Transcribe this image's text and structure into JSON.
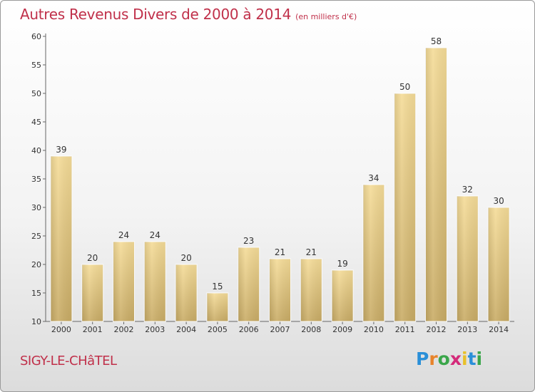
{
  "title": "Autres Revenus Divers de 2000 à 2014",
  "subtitle": "(en milliers d'€)",
  "commune": "SIGY-LE-CHâTEL",
  "logo": {
    "letters": [
      "P",
      "r",
      "o",
      "x",
      "i",
      "t",
      "i"
    ],
    "colors": [
      "#2a8fd8",
      "#e8832a",
      "#3aa64a",
      "#d42a7a",
      "#e8c02a",
      "#2a8fd8",
      "#3aa64a"
    ]
  },
  "chart_data": {
    "type": "bar",
    "title": "Autres Revenus Divers de 2000 à 2014",
    "subtitle": "(en milliers d'€)",
    "categories": [
      "2000",
      "2001",
      "2002",
      "2003",
      "2004",
      "2005",
      "2006",
      "2007",
      "2008",
      "2009",
      "2010",
      "2011",
      "2012",
      "2013",
      "2014"
    ],
    "values": [
      39,
      20,
      24,
      24,
      20,
      15,
      23,
      21,
      21,
      19,
      34,
      50,
      58,
      32,
      30
    ],
    "ylim": [
      10,
      60
    ],
    "yticks": [
      10,
      15,
      20,
      25,
      30,
      35,
      40,
      45,
      50,
      55,
      60
    ],
    "grid": false,
    "bar_color": "#e8cc80"
  }
}
